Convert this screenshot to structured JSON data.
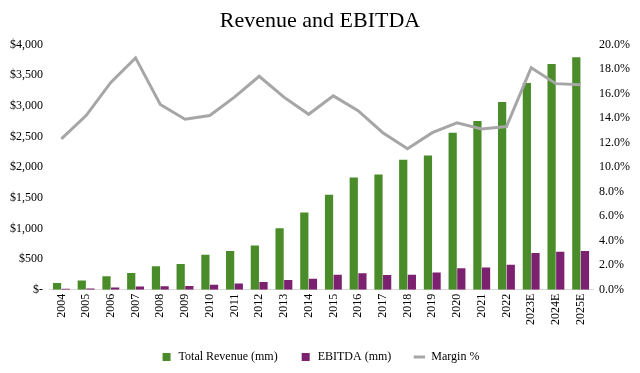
{
  "chart_data": {
    "type": "bar",
    "title": "Revenue and EBITDA",
    "categories": [
      "2004",
      "2005",
      "2006",
      "2007",
      "2008",
      "2009",
      "2010",
      "2011",
      "2012",
      "2013",
      "2014",
      "2015",
      "2016",
      "2017",
      "2018",
      "2019",
      "2020",
      "2021",
      "2022",
      "2023E",
      "2024E",
      "2025E"
    ],
    "series": [
      {
        "name": "Total Revenue (mm)",
        "type": "bar",
        "color": "#4a8c2a",
        "values": [
          110,
          150,
          220,
          270,
          380,
          420,
          570,
          630,
          720,
          1000,
          1260,
          1550,
          1830,
          1880,
          2120,
          2190,
          2560,
          2750,
          3060,
          3370,
          3680,
          3790
        ]
      },
      {
        "name": "EBITDA (mm)",
        "type": "bar",
        "color": "#7b2170",
        "values": [
          14,
          21,
          37,
          51,
          57,
          58,
          81,
          99,
          125,
          157,
          180,
          245,
          267,
          241,
          244,
          280,
          348,
          360,
          407,
          600,
          618,
          632
        ]
      },
      {
        "name": "Margin %",
        "type": "line",
        "color": "#a6a6a6",
        "axis": "y2",
        "values": [
          12.3,
          14.2,
          16.9,
          18.9,
          15.1,
          13.9,
          14.2,
          15.7,
          17.4,
          15.7,
          14.3,
          15.8,
          14.6,
          12.8,
          11.5,
          12.8,
          13.6,
          13.1,
          13.3,
          18.1,
          16.8,
          16.7
        ]
      }
    ],
    "ylim": [
      0,
      4000
    ],
    "yticks": [
      {
        "value": 0,
        "label": "$-"
      },
      {
        "value": 500,
        "label": "$500"
      },
      {
        "value": 1000,
        "label": "$1,000"
      },
      {
        "value": 1500,
        "label": "$1,500"
      },
      {
        "value": 2000,
        "label": "$2,000"
      },
      {
        "value": 2500,
        "label": "$2,500"
      },
      {
        "value": 3000,
        "label": "$3,000"
      },
      {
        "value": 3500,
        "label": "$3,500"
      },
      {
        "value": 4000,
        "label": "$4,000"
      }
    ],
    "y2lim": [
      0,
      20
    ],
    "y2ticks": [
      {
        "value": 0,
        "label": "0.0%"
      },
      {
        "value": 2,
        "label": "2.0%"
      },
      {
        "value": 4,
        "label": "4.0%"
      },
      {
        "value": 6,
        "label": "6.0%"
      },
      {
        "value": 8,
        "label": "8.0%"
      },
      {
        "value": 10,
        "label": "10.0%"
      },
      {
        "value": 12,
        "label": "12.0%"
      },
      {
        "value": 14,
        "label": "14.0%"
      },
      {
        "value": 16,
        "label": "16.0%"
      },
      {
        "value": 18,
        "label": "18.0%"
      },
      {
        "value": 20,
        "label": "20.0%"
      }
    ],
    "grid": false,
    "legend": "bottom"
  }
}
